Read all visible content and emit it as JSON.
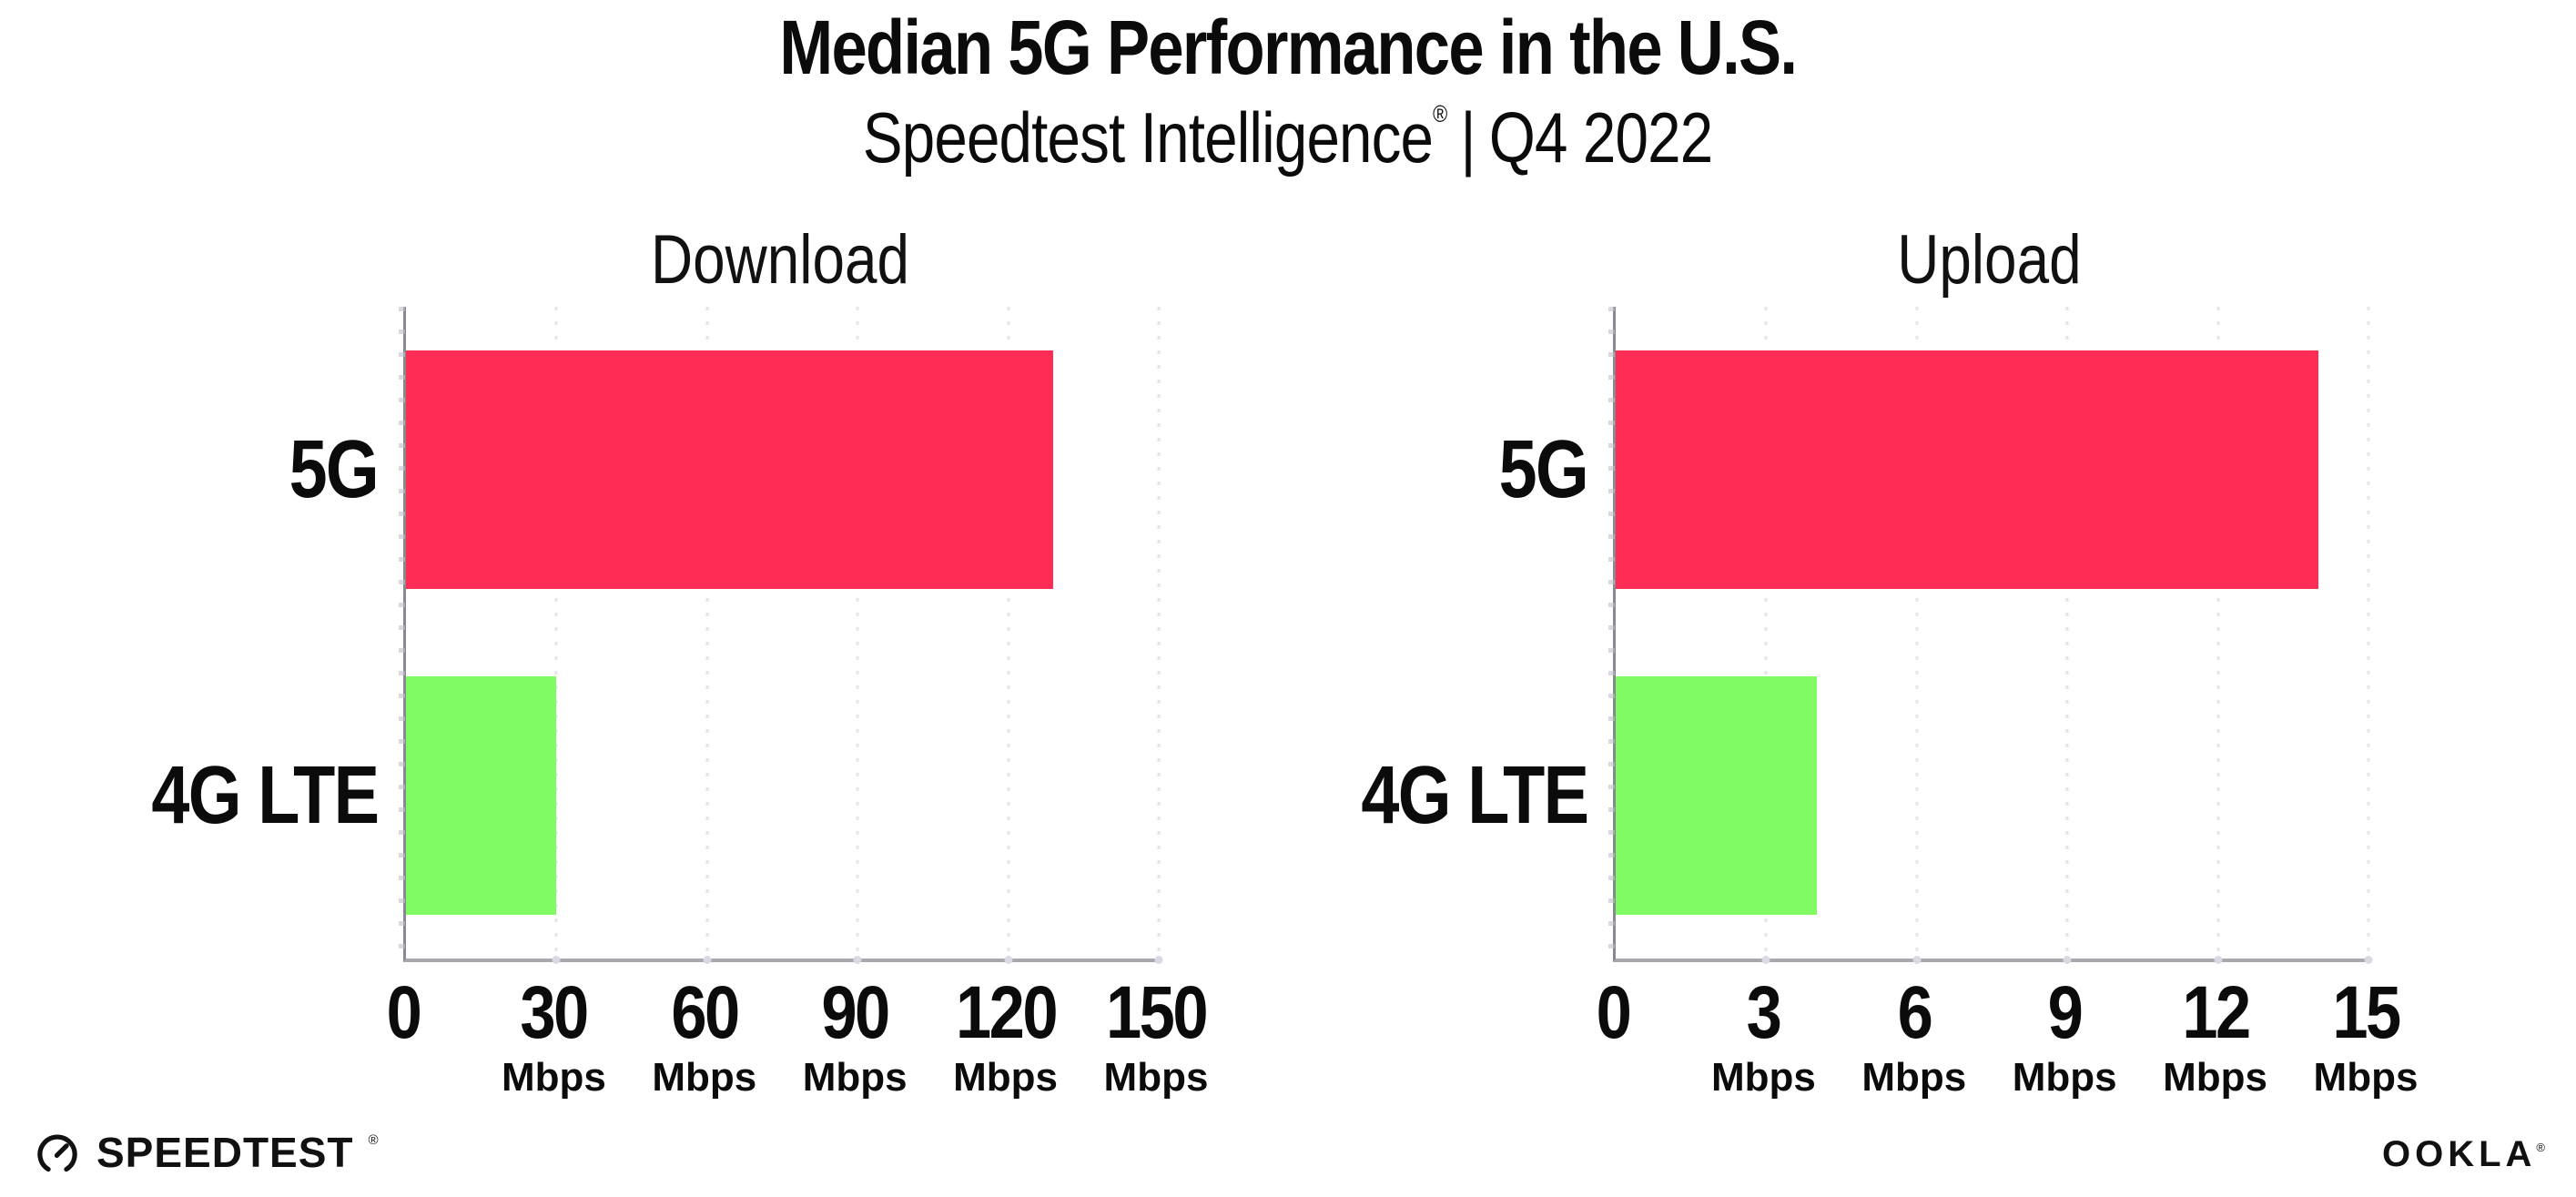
{
  "header": {
    "title": "Median 5G Performance in the U.S.",
    "subtitle_brand": "Speedtest Intelligence",
    "subtitle_reg": "®",
    "subtitle_sep": "|",
    "subtitle_period": "Q4 2022"
  },
  "chart_data": [
    {
      "type": "bar",
      "orientation": "horizontal",
      "title": "Download",
      "categories": [
        "5G",
        "4G LTE"
      ],
      "values": [
        129,
        30
      ],
      "unit": "Mbps",
      "xlim": [
        0,
        150
      ],
      "xticks": [
        0,
        30,
        60,
        90,
        120,
        150
      ],
      "grid": "vertical-dotted",
      "legend": "none",
      "bar_colors": [
        "#FF2D55",
        "#80FB63"
      ]
    },
    {
      "type": "bar",
      "orientation": "horizontal",
      "title": "Upload",
      "categories": [
        "5G",
        "4G LTE"
      ],
      "values": [
        14,
        4
      ],
      "unit": "Mbps",
      "xlim": [
        0,
        15
      ],
      "xticks": [
        0,
        3,
        6,
        9,
        12,
        15
      ],
      "grid": "vertical-dotted",
      "legend": "none",
      "bar_colors": [
        "#FF2D55",
        "#80FB63"
      ]
    }
  ],
  "footer": {
    "speedtest_label": "SPEEDTEST",
    "speedtest_mark": "®",
    "ookla_label": "OOKLA",
    "ookla_mark": "®"
  },
  "colors": {
    "bar_5g": "#FF2D55",
    "bar_4g_lte": "#80FB63",
    "axis_line": "#a8a8ae",
    "gridline": "#e4e4ee",
    "text": "#0b0b0b",
    "background": "#ffffff"
  }
}
